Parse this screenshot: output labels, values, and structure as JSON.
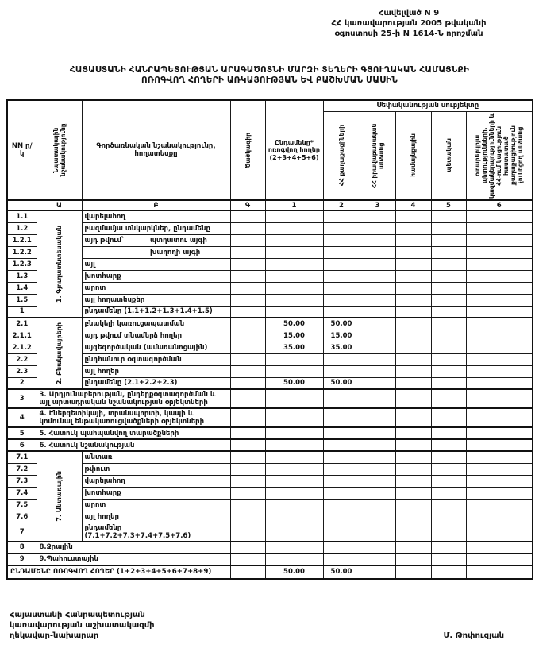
{
  "colors": {
    "paper": "#ffffff",
    "ink": "#111111"
  },
  "annex": {
    "lines": [
      "Հավելված N 9",
      "ՀՀ կառավարության 2005 թվականի",
      "օգոստոսի 25-ի N 1614-Ն որոշման"
    ]
  },
  "title": {
    "line1": "ՀԱՅԱՍՏԱՆԻ ՀԱՆՐԱՊԵՏՈՒԹՅԱՆ ԱՐԱԳԱԾՈՏՆԻ ՄԱՐԶԻ ՏԵՂԵՐԻ ԳՅՈՒՂԱԿԱՆ ՀԱՄԱՅՆՔԻ",
    "line2": "ՈՌՈԳՎՈՂ ՀՈՂԵՐԻ ԱՌԿԱՅՈՒԹՅԱՆ ԵՎ ԲԱՇԽՄԱՆ ՄԱՍԻՆ"
  },
  "table": {
    "headers": {
      "nn": "NN ը/կ",
      "purpose": "Նպատակային նշանակությունը",
      "functional": "Գործառնական նշանակությունը, հողատեսքը",
      "code": "Ծածկագիր",
      "total": "Ընդամենը* ոռոգվող հողեր (2+3+4+5+6)",
      "ownership": "Սեփականության սուբյեկտը",
      "subjects": [
        "ՀՀ քաղաքացիների",
        "ՀՀ իրավաբանական անձանց",
        "համայնքային",
        "պետական",
        "օտարերկրյա պետությունների, կազմակերպությունների և ՀՀ-ում կացություն հաստատած քաղաքացիություն չունեցող անձանց"
      ],
      "letters": [
        "Ա",
        "Բ",
        "Գ",
        "1",
        "2",
        "3",
        "4",
        "5",
        "6"
      ]
    },
    "rows": [
      {
        "nn": "1.1",
        "label": "վարելահող",
        "group": {
          "label": "1. Գյուղատնտեսական",
          "span": 9
        }
      },
      {
        "nn": "1.2",
        "label": "բազմամյա տնկարկներ, ընդամենը"
      },
      {
        "nn": "1.2.1",
        "label": "այդ թվում՝",
        "label2": "պտղատու այգի"
      },
      {
        "nn": "1.2.2",
        "label": "",
        "label2": "խաղողի այգի"
      },
      {
        "nn": "1.2.3",
        "label": "այլ"
      },
      {
        "nn": "1.3",
        "label": "խոտհարք"
      },
      {
        "nn": "1.4",
        "label": "արոտ"
      },
      {
        "nn": "1.5",
        "label": "այլ հողատեսքեր"
      },
      {
        "nn": "1",
        "label": "ընդամենը (1.1+1.2+1.3+1.4+1.5)"
      },
      {
        "nn": "2.1",
        "label": "բնակելի կառուցապատման",
        "sep": true,
        "group": {
          "label": "2. Բնակավայրերի",
          "span": 6
        },
        "vals": [
          "50.00",
          "50.00",
          "",
          "",
          "",
          ""
        ]
      },
      {
        "nn": "2.1.1",
        "label": "այդ թվում տնամերձ հողեր",
        "vals": [
          "15.00",
          "15.00",
          "",
          "",
          "",
          ""
        ]
      },
      {
        "nn": "2.1.2",
        "label": "այգեգործական (ամառանոցային)",
        "vals": [
          "35.00",
          "35.00",
          "",
          "",
          "",
          ""
        ]
      },
      {
        "nn": "2.2",
        "label": "ընդհանուր օգտագործման"
      },
      {
        "nn": "2.3",
        "label": "այլ հողեր"
      },
      {
        "nn": "2",
        "label": "ընդամենը (2.1+2.2+2.3)",
        "vals": [
          "50.00",
          "50.00",
          "",
          "",
          "",
          ""
        ]
      },
      {
        "nn": "3",
        "label": "3. Արդյունաբերության, ընդերքօգտագործման և այլ արտադրական նշանակության օբյեկտների",
        "wide": true,
        "sep": true
      },
      {
        "nn": "4",
        "label": "4. Էներգետիկայի, տրանսպորտի, կապի և կոմունալ ենթակառուցվածքների օբյեկտների",
        "wide": true,
        "sep": true
      },
      {
        "nn": "5",
        "label": "5. Հատուկ պահպանվող տարածքների",
        "wide": true,
        "sep": true
      },
      {
        "nn": "6",
        "label": "6. Հատուկ նշանակության",
        "wide": true,
        "sep": true
      },
      {
        "nn": "7.1",
        "label": "անտառ",
        "sep": true,
        "group": {
          "label": "7. Անտառային",
          "span": 7
        }
      },
      {
        "nn": "7.2",
        "label": "թփուտ"
      },
      {
        "nn": "7.3",
        "label": "վարելահող"
      },
      {
        "nn": "7.4",
        "label": "խոտհարք"
      },
      {
        "nn": "7.5",
        "label": "արոտ"
      },
      {
        "nn": "7.6",
        "label": "այլ հողեր"
      },
      {
        "nn": "7",
        "label": "ընդամենը (7.1+7.2+7.3+7.4+7.5+7.6)"
      },
      {
        "nn": "8",
        "label": "8.Ջրային",
        "wide": true,
        "sep": true
      },
      {
        "nn": "9",
        "label": "9.Պահուստային",
        "wide": true,
        "sep": true
      },
      {
        "label": "ԸՆԴԱՄԵՆԸ ՈՌՈԳՎՈՂ ՀՈՂԵՐ (1+2+3+4+5+6+7+8+9)",
        "grand": true,
        "vals": [
          "50.00",
          "50.00",
          "",
          "",
          "",
          ""
        ]
      }
    ]
  },
  "footer": {
    "lines": [
      "Հայաստանի Հանրապետության",
      "կառավարության աշխատակազմի",
      "ղեկավար-նախարար"
    ],
    "signature": "Մ. Թոփուզյան"
  }
}
